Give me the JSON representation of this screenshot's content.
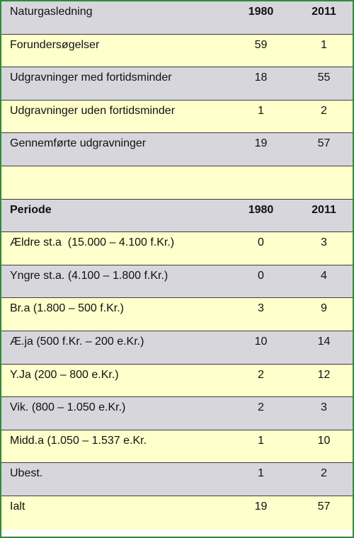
{
  "table": {
    "rows": [
      {
        "label": "Naturgasledning",
        "a": "1980",
        "b": "2011",
        "style": "gray",
        "kind": "header1"
      },
      {
        "label": "Forundersøgelser",
        "a": "59",
        "b": "1",
        "style": "yellow",
        "kind": "data"
      },
      {
        "label": "Udgravninger med fortidsminder",
        "a": "18",
        "b": "55",
        "style": "gray",
        "kind": "data"
      },
      {
        "label": "Udgravninger uden fortidsminder",
        "a": "1",
        "b": "2",
        "style": "yellow",
        "kind": "data"
      },
      {
        "label": "Gennemførte udgravninger",
        "a": "19",
        "b": "57",
        "style": "gray",
        "kind": "data"
      },
      {
        "label": "",
        "a": "",
        "b": "",
        "style": "yellow",
        "kind": "spacer"
      },
      {
        "label": "Periode",
        "a": "1980",
        "b": "2011",
        "style": "gray",
        "kind": "header2"
      },
      {
        "label": "Ældre st.a  (15.000 – 4.100 f.Kr.)",
        "a": "0",
        "b": "3",
        "style": "yellow",
        "kind": "data"
      },
      {
        "label": "Yngre st.a. (4.100 – 1.800 f.Kr.)",
        "a": "0",
        "b": "4",
        "style": "gray",
        "kind": "data"
      },
      {
        "label": "Br.a (1.800 – 500 f.Kr.)",
        "a": "3",
        "b": "9",
        "style": "yellow",
        "kind": "data"
      },
      {
        "label": "Æ.ja (500 f.Kr. – 200 e.Kr.)",
        "a": "10",
        "b": "14",
        "style": "gray",
        "kind": "data"
      },
      {
        "label": "Y.Ja (200 – 800 e.Kr.)",
        "a": "2",
        "b": "12",
        "style": "yellow",
        "kind": "data"
      },
      {
        "label": "Vik. (800 – 1.050 e.Kr.)",
        "a": "2",
        "b": "3",
        "style": "gray",
        "kind": "data"
      },
      {
        "label": "Midd.a (1.050 – 1.537 e.Kr.",
        "a": "1",
        "b": "10",
        "style": "yellow",
        "kind": "data"
      },
      {
        "label": "Ubest.",
        "a": "1",
        "b": "2",
        "style": "gray",
        "kind": "data"
      },
      {
        "label": "Ialt",
        "a": "19",
        "b": "57",
        "style": "yellow",
        "kind": "data"
      }
    ]
  },
  "colors": {
    "gray": "#d6d6dc",
    "yellow": "#ffffcc",
    "border": "#2f8a3a"
  }
}
